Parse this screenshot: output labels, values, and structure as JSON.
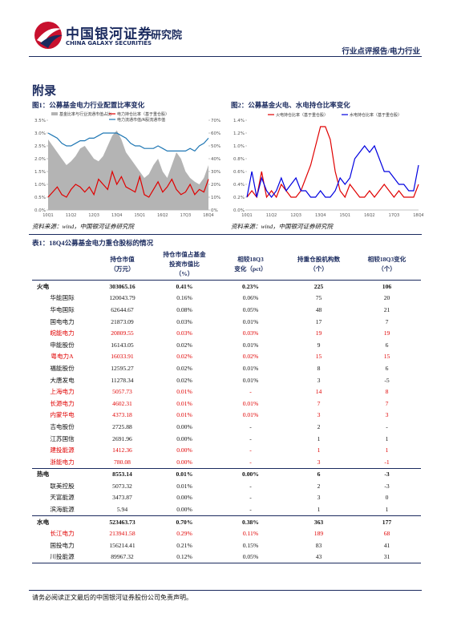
{
  "header": {
    "logo_cn": "中国银河证券",
    "logo_en": "CHINA GALAXY SECURITIES",
    "institute": "研究院",
    "report_type": "行业点评报告/电力行业"
  },
  "section_title": "附录",
  "chart_data": [
    {
      "type": "line",
      "title": "图1：公募基金电力行业配置比率变化",
      "source": "资料来源：wind，中国银河证券研究院",
      "categories": [
        "10Q1",
        null,
        null,
        null,
        null,
        "11Q2",
        null,
        null,
        null,
        null,
        "12Q3",
        null,
        null,
        null,
        null,
        "13Q4",
        null,
        null,
        null,
        null,
        "15Q1",
        null,
        null,
        null,
        null,
        "16Q2",
        null,
        null,
        null,
        null,
        "17Q3",
        null,
        null,
        null,
        null,
        "18Q4"
      ],
      "ylim": [
        0,
        3.5
      ],
      "yticks": [
        {
          "value": 0,
          "label": "0.0%"
        },
        {
          "value": 0.5,
          "label": "0.5%"
        },
        {
          "value": 1,
          "label": "1.0%"
        },
        {
          "value": 1.5,
          "label": "1.5%"
        },
        {
          "value": 2,
          "label": "2.0%"
        },
        {
          "value": 2.5,
          "label": "2.5%"
        },
        {
          "value": 3,
          "label": "3.0%"
        },
        {
          "value": 3.5,
          "label": "3.5%"
        }
      ],
      "y2lim": [
        0,
        70
      ],
      "y2ticks": [
        {
          "value": 0,
          "label": "0%"
        },
        {
          "value": 10,
          "label": "10%"
        },
        {
          "value": 20,
          "label": "20%"
        },
        {
          "value": 30,
          "label": "30%"
        },
        {
          "value": 40,
          "label": "40%"
        },
        {
          "value": 50,
          "label": "50%"
        },
        {
          "value": 60,
          "label": "60%"
        },
        {
          "value": 70,
          "label": "70%"
        }
      ],
      "series": [
        {
          "name": "基金比率与行业流通市值占比",
          "color": "#b4b4b4",
          "area": true,
          "axis": "y2",
          "values": [
            55,
            50,
            45,
            40,
            35,
            38,
            42,
            48,
            50,
            45,
            40,
            38,
            42,
            50,
            58,
            62,
            55,
            45,
            40,
            35,
            30,
            25,
            28,
            35,
            40,
            30,
            25,
            35,
            45,
            40,
            30,
            25,
            22,
            20,
            25,
            35
          ]
        },
        {
          "name": "电力持仓比率（基于重仓股）",
          "color": "#e00000",
          "area": false,
          "values": [
            0.5,
            0.7,
            0.9,
            0.6,
            0.5,
            0.8,
            1.0,
            0.9,
            0.7,
            0.9,
            0.6,
            1.2,
            1.0,
            0.8,
            1.5,
            1.0,
            1.3,
            0.9,
            0.8,
            0.7,
            1.3,
            0.6,
            0.5,
            0.8,
            1.1,
            0.7,
            0.9,
            1.2,
            0.8,
            0.6,
            0.7,
            1.0,
            0.6,
            0.8,
            0.7,
            1.2
          ]
        },
        {
          "name": "电力流通市值/A股流通市值",
          "color": "#1f77b4",
          "area": false,
          "values": [
            3.0,
            2.9,
            2.8,
            2.6,
            2.5,
            2.5,
            2.6,
            2.7,
            2.7,
            2.8,
            2.8,
            2.9,
            3.0,
            3.0,
            3.0,
            3.0,
            2.9,
            2.8,
            2.6,
            2.5,
            2.5,
            2.4,
            2.4,
            2.4,
            2.5,
            2.4,
            2.3,
            2.3,
            2.3,
            2.3,
            2.3,
            2.4,
            2.3,
            2.5,
            2.6,
            2.8
          ]
        }
      ]
    },
    {
      "type": "line",
      "title": "图2：公募基金火电、水电持仓比率变化",
      "source": "资料来源：wind，中国银河证券研究院",
      "categories": [
        "10Q1",
        null,
        null,
        null,
        null,
        "11Q2",
        null,
        null,
        null,
        null,
        "12Q3",
        null,
        null,
        null,
        null,
        "13Q4",
        null,
        null,
        null,
        null,
        "15Q1",
        null,
        null,
        null,
        null,
        "16Q2",
        null,
        null,
        null,
        null,
        "17Q3",
        null,
        null,
        null,
        null,
        "18Q4"
      ],
      "ylim": [
        0,
        1.4
      ],
      "yticks": [
        {
          "value": 0,
          "label": "0.0%"
        },
        {
          "value": 0.2,
          "label": "0.2%"
        },
        {
          "value": 0.4,
          "label": "0.4%"
        },
        {
          "value": 0.6,
          "label": "0.6%"
        },
        {
          "value": 0.8,
          "label": "0.8%"
        },
        {
          "value": 1,
          "label": "1.0%"
        },
        {
          "value": 1.2,
          "label": "1.2%"
        },
        {
          "value": 1.4,
          "label": "1.4%"
        }
      ],
      "series": [
        {
          "name": "火电持仓比率（基于重仓股）",
          "color": "#e00000",
          "area": false,
          "values": [
            0.2,
            0.3,
            0.2,
            0.6,
            0.2,
            0.3,
            0.2,
            0.4,
            0.3,
            0.2,
            0.2,
            0.3,
            0.5,
            0.7,
            1.0,
            1.3,
            1.3,
            1.1,
            0.6,
            0.3,
            0.2,
            0.4,
            0.3,
            0.2,
            0.2,
            0.3,
            0.2,
            0.3,
            0.4,
            0.3,
            0.2,
            0.3,
            0.2,
            0.2,
            0.2,
            0.4
          ]
        },
        {
          "name": "水电持仓比率（基于重仓股）",
          "color": "#0000e0",
          "area": false,
          "values": [
            0.2,
            0.6,
            0.2,
            0.5,
            0.3,
            0.2,
            0.3,
            0.5,
            0.3,
            0.4,
            0.5,
            0.3,
            0.3,
            0.2,
            0.2,
            0.3,
            0.2,
            0.2,
            0.3,
            0.5,
            0.4,
            0.5,
            0.8,
            0.9,
            1.0,
            0.9,
            1.0,
            0.8,
            0.6,
            0.6,
            0.5,
            0.4,
            0.4,
            0.3,
            0.3,
            0.7
          ]
        }
      ]
    }
  ],
  "table": {
    "title": "表1：18Q4公募基金电力重仓股标的情况",
    "header": [
      [],
      [
        "持仓市值",
        "（万元）"
      ],
      [
        "持仓市值占基金",
        "投资市值比",
        "（%）"
      ],
      [
        "相较18Q3",
        "变化（pct）"
      ],
      [
        "持重仓股机构数",
        "（个）"
      ],
      [
        "相较18Q3变化",
        "（个）"
      ]
    ],
    "rows": [
      {
        "group": true,
        "highlight": false,
        "cells": [
          "火电",
          "303065.16",
          "0.41%",
          "0.23%",
          "225",
          "106"
        ]
      },
      {
        "group": false,
        "highlight": false,
        "cells": [
          "华能国际",
          "120043.79",
          "0.16%",
          "0.06%",
          "75",
          "20"
        ]
      },
      {
        "group": false,
        "highlight": false,
        "cells": [
          "华电国际",
          "62644.67",
          "0.08%",
          "0.05%",
          "48",
          "21"
        ]
      },
      {
        "group": false,
        "highlight": false,
        "cells": [
          "国电电力",
          "21873.09",
          "0.03%",
          "0.01%",
          "17",
          "7"
        ]
      },
      {
        "group": false,
        "highlight": true,
        "cells": [
          "皖能电力",
          "20809.55",
          "0.03%",
          "0.03%",
          "19",
          "19"
        ]
      },
      {
        "group": false,
        "highlight": false,
        "cells": [
          "申能股份",
          "16143.05",
          "0.02%",
          "0.01%",
          "9",
          "6"
        ]
      },
      {
        "group": false,
        "highlight": true,
        "cells": [
          "粤电力A",
          "16033.91",
          "0.02%",
          "0.02%",
          "15",
          "15"
        ]
      },
      {
        "group": false,
        "highlight": false,
        "cells": [
          "福能股份",
          "12595.27",
          "0.02%",
          "0.01%",
          "8",
          "6"
        ]
      },
      {
        "group": false,
        "highlight": false,
        "cells": [
          "大唐发电",
          "11278.34",
          "0.02%",
          "0.01%",
          "3",
          "-5"
        ]
      },
      {
        "group": false,
        "highlight": true,
        "cells": [
          "上海电力",
          "5057.73",
          "0.01%",
          "-",
          "14",
          "8"
        ]
      },
      {
        "group": false,
        "highlight": true,
        "cells": [
          "长源电力",
          "4602.31",
          "0.01%",
          "0.01%",
          "7",
          "7"
        ]
      },
      {
        "group": false,
        "highlight": true,
        "cells": [
          "内蒙华电",
          "4373.18",
          "0.01%",
          "0.01%",
          "3",
          "3"
        ]
      },
      {
        "group": false,
        "highlight": false,
        "cells": [
          "吉电股份",
          "2725.88",
          "0.00%",
          "-",
          "2",
          "-"
        ]
      },
      {
        "group": false,
        "highlight": false,
        "cells": [
          "江苏国信",
          "2691.96",
          "0.00%",
          "-",
          "1",
          "1"
        ]
      },
      {
        "group": false,
        "highlight": true,
        "cells": [
          "建投能源",
          "1412.36",
          "0.00%",
          "-",
          "1",
          "1"
        ]
      },
      {
        "group": false,
        "highlight": true,
        "cells": [
          "浙能电力",
          "780.08",
          "0.00%",
          "-",
          "3",
          "-1"
        ]
      },
      {
        "group": true,
        "highlight": false,
        "cells": [
          "热电",
          "8553.14",
          "0.01%",
          "0.00%",
          "6",
          "-3"
        ]
      },
      {
        "group": false,
        "highlight": false,
        "cells": [
          "联美控股",
          "5073.32",
          "0.01%",
          "-",
          "2",
          "-3"
        ]
      },
      {
        "group": false,
        "highlight": false,
        "cells": [
          "天富能源",
          "3473.87",
          "0.00%",
          "-",
          "3",
          "0"
        ]
      },
      {
        "group": false,
        "highlight": false,
        "cells": [
          "滨海能源",
          "5.94",
          "0.00%",
          "-",
          "1",
          "1"
        ]
      },
      {
        "group": true,
        "highlight": false,
        "cells": [
          "水电",
          "523463.73",
          "0.70%",
          "0.38%",
          "363",
          "177"
        ]
      },
      {
        "group": false,
        "highlight": true,
        "cells": [
          "长江电力",
          "213941.58",
          "0.29%",
          "0.11%",
          "189",
          "68"
        ]
      },
      {
        "group": false,
        "highlight": false,
        "cells": [
          "国投电力",
          "156214.41",
          "0.21%",
          "0.15%",
          "83",
          "41"
        ]
      },
      {
        "group": false,
        "highlight": false,
        "cells": [
          "川投能源",
          "89967.32",
          "0.12%",
          "0.05%",
          "43",
          "31"
        ]
      }
    ]
  },
  "footer": "请务必阅读正文最后的中国银河证券股份公司免责声明。"
}
